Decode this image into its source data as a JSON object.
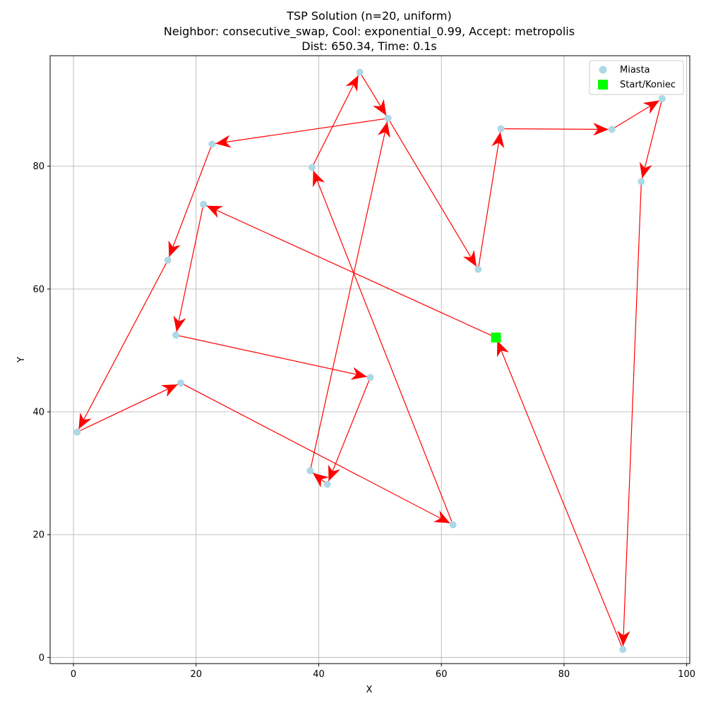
{
  "chart_data": {
    "type": "scatter",
    "title": [
      "TSP Solution (n=20, uniform)",
      "Neighbor: consecutive_swap, Cool: exponential_0.99, Accept: metropolis",
      "Dist: 650.34, Time: 0.1s"
    ],
    "xlabel": "X",
    "ylabel": "Y",
    "xlim": [
      -3.8,
      100.5
    ],
    "ylim": [
      -1.0,
      98.0
    ],
    "xticks": [
      0,
      20,
      40,
      60,
      80,
      100
    ],
    "yticks": [
      0,
      20,
      40,
      60,
      80
    ],
    "grid": true,
    "legend": {
      "placement": "top-right",
      "entries": [
        {
          "label": "Miasta",
          "marker": "circle",
          "color": "#add8e6"
        },
        {
          "label": "Start/Koniec",
          "marker": "square",
          "color": "#00ff00"
        }
      ]
    },
    "colors": {
      "city": "#add8e6",
      "start": "#00ff00",
      "route": "#ff0000",
      "grid": "#b0b0b0"
    },
    "start": {
      "x": 68.9,
      "y": 52.1
    },
    "route": [
      {
        "x": 68.9,
        "y": 52.1
      },
      {
        "x": 21.2,
        "y": 73.8
      },
      {
        "x": 16.7,
        "y": 52.5
      },
      {
        "x": 48.4,
        "y": 45.6
      },
      {
        "x": 41.4,
        "y": 28.2
      },
      {
        "x": 38.6,
        "y": 30.4
      },
      {
        "x": 51.3,
        "y": 87.8
      },
      {
        "x": 22.6,
        "y": 83.6
      },
      {
        "x": 15.4,
        "y": 64.7
      },
      {
        "x": 0.6,
        "y": 36.7
      },
      {
        "x": 17.5,
        "y": 44.7
      },
      {
        "x": 61.9,
        "y": 21.6
      },
      {
        "x": 38.9,
        "y": 79.8
      },
      {
        "x": 46.7,
        "y": 95.3
      },
      {
        "x": 51.3,
        "y": 87.8
      },
      {
        "x": 66.0,
        "y": 63.2
      },
      {
        "x": 69.7,
        "y": 86.1
      },
      {
        "x": 87.8,
        "y": 86.0
      },
      {
        "x": 96.0,
        "y": 91.0
      },
      {
        "x": 92.6,
        "y": 77.5
      },
      {
        "x": 89.6,
        "y": 1.3
      },
      {
        "x": 68.9,
        "y": 52.1
      }
    ],
    "cities": [
      {
        "x": 68.9,
        "y": 52.1
      },
      {
        "x": 21.2,
        "y": 73.8
      },
      {
        "x": 16.7,
        "y": 52.5
      },
      {
        "x": 48.4,
        "y": 45.6
      },
      {
        "x": 41.4,
        "y": 28.2
      },
      {
        "x": 38.6,
        "y": 30.4
      },
      {
        "x": 51.3,
        "y": 87.8
      },
      {
        "x": 22.6,
        "y": 83.6
      },
      {
        "x": 15.4,
        "y": 64.7
      },
      {
        "x": 0.6,
        "y": 36.7
      },
      {
        "x": 17.5,
        "y": 44.7
      },
      {
        "x": 61.9,
        "y": 21.6
      },
      {
        "x": 38.9,
        "y": 79.8
      },
      {
        "x": 46.7,
        "y": 95.3
      },
      {
        "x": 66.0,
        "y": 63.2
      },
      {
        "x": 69.7,
        "y": 86.1
      },
      {
        "x": 87.8,
        "y": 86.0
      },
      {
        "x": 96.0,
        "y": 91.0
      },
      {
        "x": 92.6,
        "y": 77.5
      },
      {
        "x": 89.6,
        "y": 1.3
      }
    ]
  }
}
